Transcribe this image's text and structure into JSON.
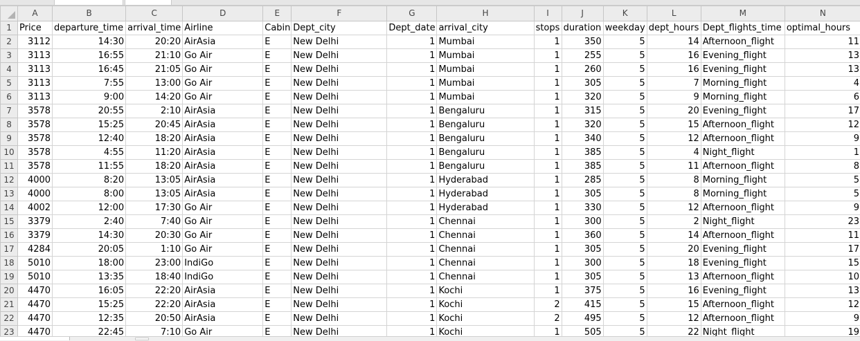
{
  "columns": [
    "A",
    "B",
    "C",
    "D",
    "E",
    "F",
    "G",
    "H",
    "I",
    "J",
    "K",
    "L",
    "M",
    "N"
  ],
  "rows": [
    {
      "num": "1",
      "cells": [
        "Price",
        "departure_time",
        "arrival_time",
        "Airline",
        "Cabin",
        "Dept_city",
        "Dept_date",
        "arrival_city",
        "stops",
        "duration",
        "weekday",
        "dept_hours",
        "Dept_flights_time",
        "optimal_hours"
      ]
    },
    {
      "num": "2",
      "cells": [
        "3112",
        "14:30",
        "20:20",
        "AirAsia",
        "E",
        "New Delhi",
        "1",
        "Mumbai",
        "1",
        "350",
        "5",
        "14",
        "Afternoon_flight",
        "11"
      ]
    },
    {
      "num": "3",
      "cells": [
        "3113",
        "16:55",
        "21:10",
        "Go Air",
        "E",
        "New Delhi",
        "1",
        "Mumbai",
        "1",
        "255",
        "5",
        "16",
        "Evening_flight",
        "13"
      ]
    },
    {
      "num": "4",
      "cells": [
        "3113",
        "16:45",
        "21:05",
        "Go Air",
        "E",
        "New Delhi",
        "1",
        "Mumbai",
        "1",
        "260",
        "5",
        "16",
        "Evening_flight",
        "13"
      ]
    },
    {
      "num": "5",
      "cells": [
        "3113",
        "7:55",
        "13:00",
        "Go Air",
        "E",
        "New Delhi",
        "1",
        "Mumbai",
        "1",
        "305",
        "5",
        "7",
        "Morning_flight",
        "4"
      ]
    },
    {
      "num": "6",
      "cells": [
        "3113",
        "9:00",
        "14:20",
        "Go Air",
        "E",
        "New Delhi",
        "1",
        "Mumbai",
        "1",
        "320",
        "5",
        "9",
        "Morning_flight",
        "6"
      ]
    },
    {
      "num": "7",
      "cells": [
        "3578",
        "20:55",
        "2:10",
        "AirAsia",
        "E",
        "New Delhi",
        "1",
        "Bengaluru",
        "1",
        "315",
        "5",
        "20",
        "Evening_flight",
        "17"
      ]
    },
    {
      "num": "8",
      "cells": [
        "3578",
        "15:25",
        "20:45",
        "AirAsia",
        "E",
        "New Delhi",
        "1",
        "Bengaluru",
        "1",
        "320",
        "5",
        "15",
        "Afternoon_flight",
        "12"
      ]
    },
    {
      "num": "9",
      "cells": [
        "3578",
        "12:40",
        "18:20",
        "AirAsia",
        "E",
        "New Delhi",
        "1",
        "Bengaluru",
        "1",
        "340",
        "5",
        "12",
        "Afternoon_flight",
        "9"
      ]
    },
    {
      "num": "10",
      "cells": [
        "3578",
        "4:55",
        "11:20",
        "AirAsia",
        "E",
        "New Delhi",
        "1",
        "Bengaluru",
        "1",
        "385",
        "5",
        "4",
        "Night_flight",
        "1"
      ]
    },
    {
      "num": "11",
      "cells": [
        "3578",
        "11:55",
        "18:20",
        "AirAsia",
        "E",
        "New Delhi",
        "1",
        "Bengaluru",
        "1",
        "385",
        "5",
        "11",
        "Afternoon_flight",
        "8"
      ]
    },
    {
      "num": "12",
      "cells": [
        "4000",
        "8:20",
        "13:05",
        "AirAsia",
        "E",
        "New Delhi",
        "1",
        "Hyderabad",
        "1",
        "285",
        "5",
        "8",
        "Morning_flight",
        "5"
      ]
    },
    {
      "num": "13",
      "cells": [
        "4000",
        "8:00",
        "13:05",
        "AirAsia",
        "E",
        "New Delhi",
        "1",
        "Hyderabad",
        "1",
        "305",
        "5",
        "8",
        "Morning_flight",
        "5"
      ]
    },
    {
      "num": "14",
      "cells": [
        "4002",
        "12:00",
        "17:30",
        "Go Air",
        "E",
        "New Delhi",
        "1",
        "Hyderabad",
        "1",
        "330",
        "5",
        "12",
        "Afternoon_flight",
        "9"
      ]
    },
    {
      "num": "15",
      "cells": [
        "3379",
        "2:40",
        "7:40",
        "Go Air",
        "E",
        "New Delhi",
        "1",
        "Chennai",
        "1",
        "300",
        "5",
        "2",
        "Night_flight",
        "23"
      ]
    },
    {
      "num": "16",
      "cells": [
        "3379",
        "14:30",
        "20:30",
        "Go Air",
        "E",
        "New Delhi",
        "1",
        "Chennai",
        "1",
        "360",
        "5",
        "14",
        "Afternoon_flight",
        "11"
      ]
    },
    {
      "num": "17",
      "cells": [
        "4284",
        "20:05",
        "1:10",
        "Go Air",
        "E",
        "New Delhi",
        "1",
        "Chennai",
        "1",
        "305",
        "5",
        "20",
        "Evening_flight",
        "17"
      ]
    },
    {
      "num": "18",
      "cells": [
        "5010",
        "18:00",
        "23:00",
        "IndiGo",
        "E",
        "New Delhi",
        "1",
        "Chennai",
        "1",
        "300",
        "5",
        "18",
        "Evening_flight",
        "15"
      ]
    },
    {
      "num": "19",
      "cells": [
        "5010",
        "13:35",
        "18:40",
        "IndiGo",
        "E",
        "New Delhi",
        "1",
        "Chennai",
        "1",
        "305",
        "5",
        "13",
        "Afternoon_flight",
        "10"
      ]
    },
    {
      "num": "20",
      "cells": [
        "4470",
        "16:05",
        "22:20",
        "AirAsia",
        "E",
        "New Delhi",
        "1",
        "Kochi",
        "1",
        "375",
        "5",
        "16",
        "Evening_flight",
        "13"
      ]
    },
    {
      "num": "21",
      "cells": [
        "4470",
        "15:25",
        "22:20",
        "AirAsia",
        "E",
        "New Delhi",
        "1",
        "Kochi",
        "2",
        "415",
        "5",
        "15",
        "Afternoon_flight",
        "12"
      ]
    },
    {
      "num": "22",
      "cells": [
        "4470",
        "12:35",
        "20:50",
        "AirAsia",
        "E",
        "New Delhi",
        "1",
        "Kochi",
        "2",
        "495",
        "5",
        "12",
        "Afternoon_flight",
        "9"
      ]
    },
    {
      "num": "23",
      "cells": [
        "4470",
        "22:45",
        "7:10",
        "Go Air",
        "E",
        "New Delhi",
        "1",
        "Kochi",
        "1",
        "505",
        "5",
        "22",
        "Night_flight",
        "19"
      ]
    }
  ]
}
